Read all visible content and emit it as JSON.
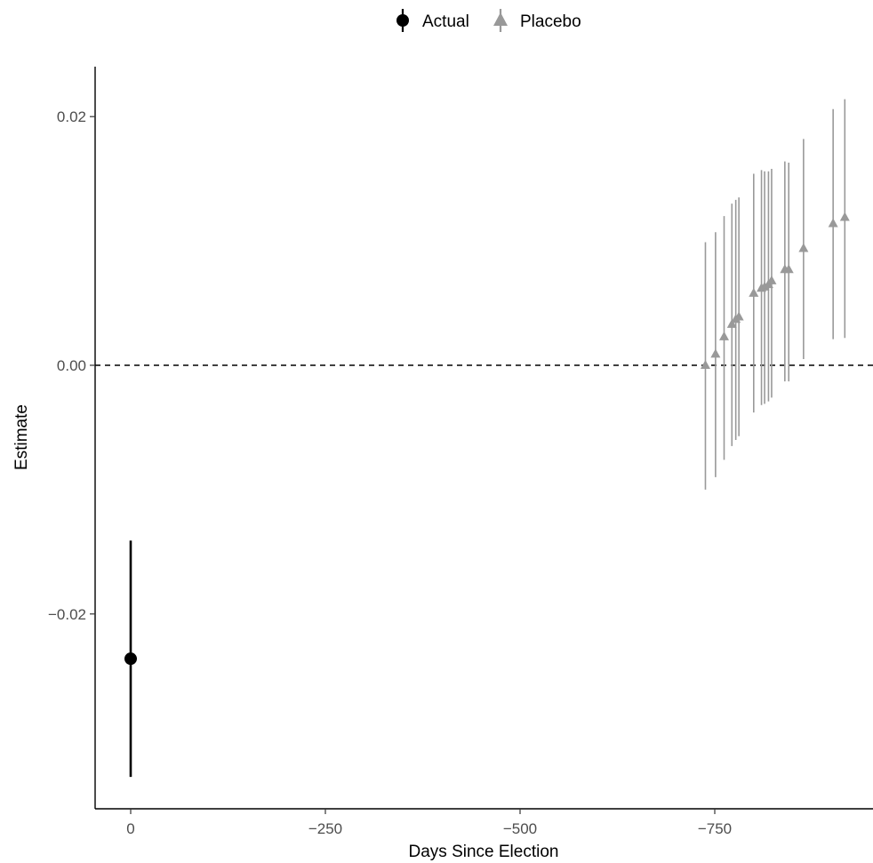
{
  "chart_data": {
    "type": "scatter",
    "title": "",
    "xlabel": "Days Since Election",
    "ylabel": "Estimate",
    "x_reversed": true,
    "xlim": [
      0,
      950
    ],
    "ylim": [
      -0.0315,
      0.0242
    ],
    "x_ticks": [
      0,
      250,
      500,
      750
    ],
    "x_tick_labels": [
      "0",
      "−250",
      "−500",
      "−750"
    ],
    "y_ticks": [
      -0.02,
      0.0,
      0.02
    ],
    "y_tick_labels": [
      "−0.02",
      "0.00",
      "0.02"
    ],
    "reference_line": {
      "y": 0,
      "style": "dashed"
    },
    "grid": false,
    "legend": {
      "position": "top",
      "items": [
        "Actual",
        "Placebo"
      ]
    },
    "series": [
      {
        "name": "Actual",
        "color": "#000000",
        "marker": "circle",
        "points": [
          {
            "x": 0,
            "y": -0.0236,
            "lo": -0.0331,
            "hi": -0.0141
          }
        ]
      },
      {
        "name": "Placebo",
        "color": "#999999",
        "marker": "triangle",
        "points": [
          {
            "x": 738,
            "y": 0.0,
            "lo": -0.01,
            "hi": 0.0099
          },
          {
            "x": 751,
            "y": 0.0009,
            "lo": -0.009,
            "hi": 0.0107
          },
          {
            "x": 762,
            "y": 0.0023,
            "lo": -0.0076,
            "hi": 0.012
          },
          {
            "x": 772,
            "y": 0.0033,
            "lo": -0.0065,
            "hi": 0.013
          },
          {
            "x": 777,
            "y": 0.0037,
            "lo": -0.006,
            "hi": 0.0133
          },
          {
            "x": 781,
            "y": 0.0039,
            "lo": -0.0057,
            "hi": 0.0135
          },
          {
            "x": 800,
            "y": 0.0058,
            "lo": -0.0038,
            "hi": 0.0154
          },
          {
            "x": 810,
            "y": 0.0062,
            "lo": -0.0032,
            "hi": 0.0157
          },
          {
            "x": 814,
            "y": 0.0063,
            "lo": -0.0031,
            "hi": 0.0156
          },
          {
            "x": 819,
            "y": 0.0065,
            "lo": -0.0029,
            "hi": 0.0156
          },
          {
            "x": 823,
            "y": 0.0068,
            "lo": -0.0026,
            "hi": 0.0158
          },
          {
            "x": 840,
            "y": 0.0077,
            "lo": -0.0013,
            "hi": 0.0164
          },
          {
            "x": 845,
            "y": 0.0077,
            "lo": -0.0013,
            "hi": 0.0163
          },
          {
            "x": 864,
            "y": 0.0094,
            "lo": 0.0005,
            "hi": 0.0182
          },
          {
            "x": 902,
            "y": 0.0114,
            "lo": 0.0021,
            "hi": 0.0206
          },
          {
            "x": 917,
            "y": 0.0119,
            "lo": 0.0022,
            "hi": 0.0214
          }
        ]
      }
    ]
  }
}
